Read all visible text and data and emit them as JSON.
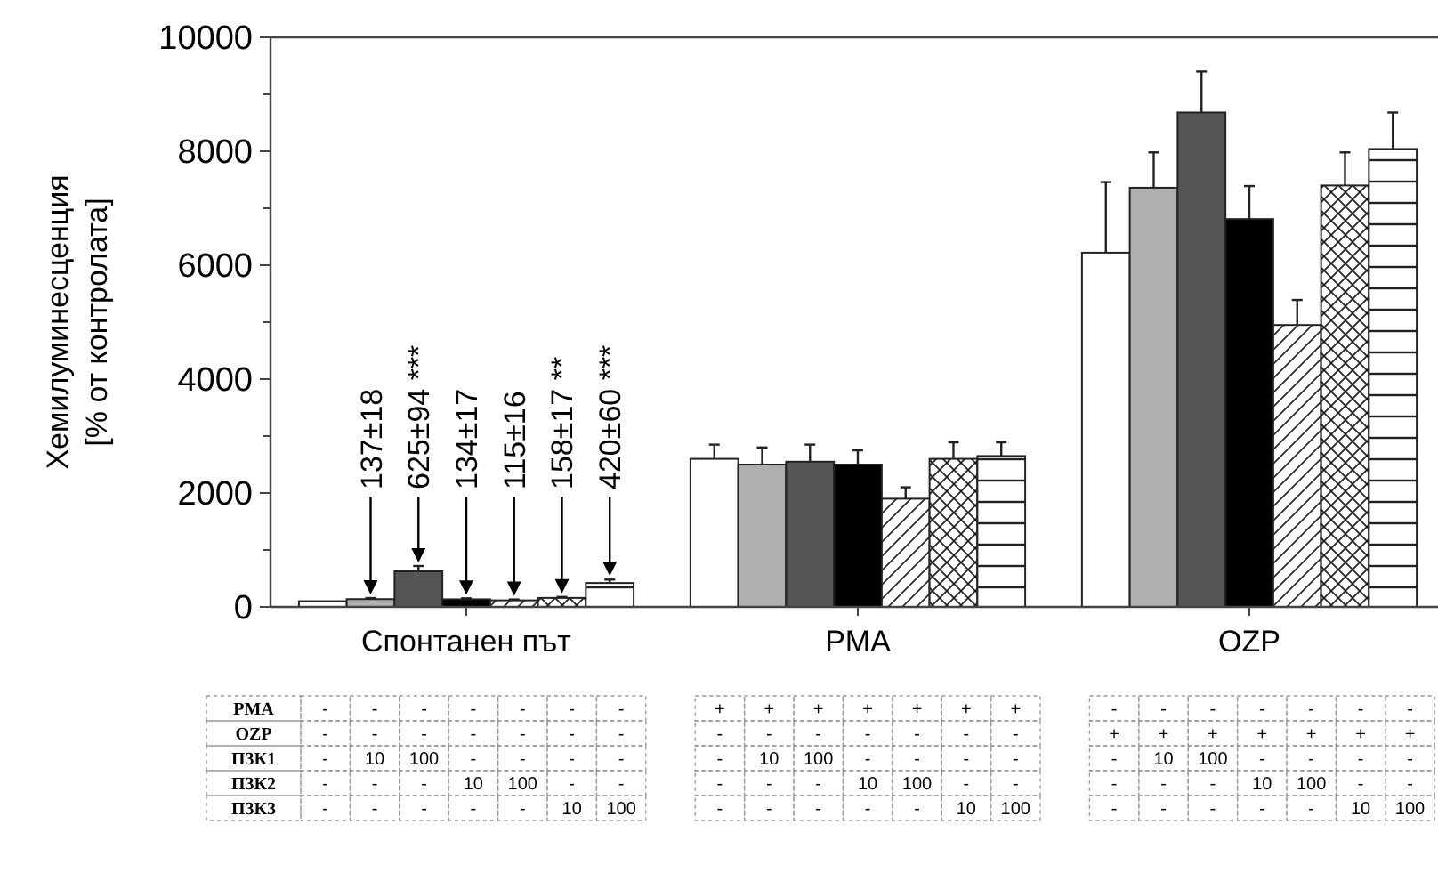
{
  "chart_data": {
    "type": "bar",
    "ylabel": "Хемилуминесценция\n[% от контролата]",
    "categories": [
      "Спонтанен път",
      "PMA",
      "OZP"
    ],
    "series": [
      {
        "color": "#ffffff",
        "values": [
          100,
          2600,
          6220
        ],
        "errors": [
          null,
          250,
          1240
        ]
      },
      {
        "color": "#b0b0b0",
        "values": [
          137,
          2500,
          7360
        ],
        "errors": [
          18,
          300,
          620
        ],
        "value_labels": [
          "137±18",
          null,
          null
        ]
      },
      {
        "color": "#555555",
        "values": [
          625,
          2550,
          8680
        ],
        "errors": [
          94,
          300,
          720
        ],
        "value_labels": [
          "625±94 ***",
          null,
          null
        ]
      },
      {
        "color": "#000000",
        "values": [
          134,
          2500,
          6810
        ],
        "errors": [
          17,
          250,
          580
        ],
        "value_labels": [
          "134±17",
          null,
          null
        ]
      },
      {
        "color": "#222222",
        "values": [
          115,
          1900,
          4950
        ],
        "errors": [
          16,
          200,
          440
        ],
        "value_labels": [
          "115±16",
          null,
          null
        ]
      },
      {
        "color": "#222222",
        "values": [
          158,
          2600,
          7400
        ],
        "errors": [
          17,
          290,
          580
        ],
        "value_labels": [
          "158±17 **",
          null,
          null
        ]
      },
      {
        "color": "#222222",
        "values": [
          420,
          2650,
          8040
        ],
        "errors": [
          60,
          240,
          640
        ],
        "value_labels": [
          "420±60 ***",
          null,
          null
        ]
      }
    ],
    "ylim": [
      0,
      10000
    ],
    "yticks": [
      0,
      {
        "value": 1000,
        "label": null
      },
      2000,
      {
        "value": 3000,
        "label": null
      },
      4000,
      {
        "value": 5000,
        "label": null
      },
      6000,
      {
        "value": 7000,
        "label": null
      },
      8000,
      {
        "value": 9000,
        "label": null
      },
      10000
    ],
    "grid": false,
    "annotations": [
      "PMA - - - - - - - + + + + + + + - - - - - - -",
      "OZP - - - - - - - - - - - - - - + + + + + + +",
      "П3К1 - 10 100 - - - - - 10 100 - - - - - 10 100 - - - -",
      "П3К2 - - - 10 100 - - - - - 10 100 - - - - - 10 100 - -",
      "П3К3 - - - - - 10 100 - - - - - 10 100 - - - - - 10 100"
    ]
  }
}
